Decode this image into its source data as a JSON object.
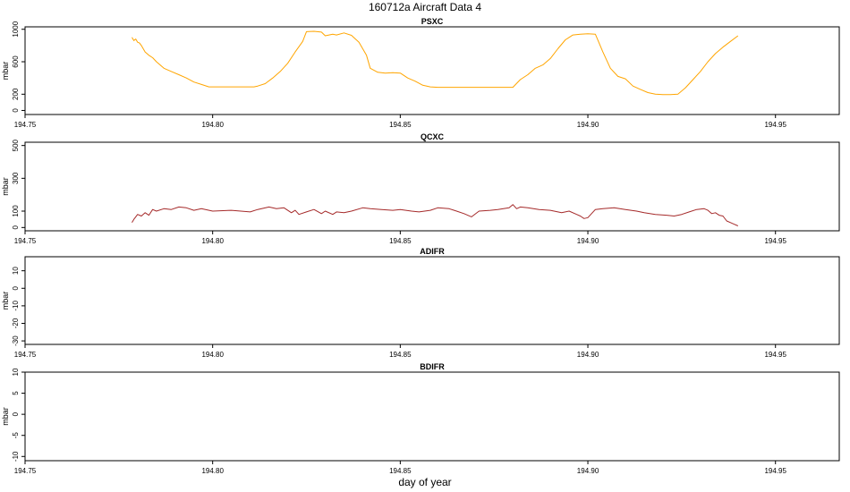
{
  "figure_title": "160712a   Aircraft Data 4",
  "xlabel": "day of year",
  "chart_data": [
    {
      "type": "line",
      "title": "PSXC",
      "ylabel": "mbar",
      "xlim": [
        194.75,
        194.967
      ],
      "ylim": [
        -50,
        1030
      ],
      "xticks": [
        194.75,
        194.8,
        194.85,
        194.9,
        194.95
      ],
      "xtick_labels": [
        "194.75",
        "194.80",
        "194.85",
        "194.90",
        "194.95"
      ],
      "yticks": [
        0,
        200,
        600,
        1000
      ],
      "ytick_labels": [
        "0",
        "200",
        "600",
        "1000"
      ],
      "series": [
        {
          "color": "#FFA500",
          "x": [
            194.7785,
            194.779,
            194.7795,
            194.78,
            194.7805,
            194.781,
            194.782,
            194.783,
            194.784,
            194.785,
            194.787,
            194.789,
            194.791,
            194.793,
            194.795,
            194.797,
            194.799,
            194.805,
            194.811,
            194.812,
            194.814,
            194.816,
            194.818,
            194.82,
            194.822,
            194.824,
            194.825,
            194.827,
            194.829,
            194.83,
            194.832,
            194.833,
            194.835,
            194.837,
            194.839,
            194.841,
            194.842,
            194.844,
            194.846,
            194.848,
            194.85,
            194.852,
            194.854,
            194.856,
            194.858,
            194.86,
            194.865,
            194.87,
            194.875,
            194.88,
            194.882,
            194.884,
            194.886,
            194.888,
            194.89,
            194.892,
            194.894,
            194.896,
            194.898,
            194.9,
            194.902,
            194.904,
            194.906,
            194.908,
            194.91,
            194.912,
            194.914,
            194.916,
            194.918,
            194.92,
            194.922,
            194.924,
            194.926,
            194.928,
            194.93,
            194.932,
            194.934,
            194.936,
            194.938,
            194.94
          ],
          "y": [
            900,
            860,
            880,
            840,
            830,
            800,
            720,
            680,
            650,
            600,
            520,
            480,
            440,
            400,
            350,
            320,
            290,
            290,
            290,
            300,
            330,
            400,
            480,
            580,
            720,
            850,
            970,
            975,
            965,
            920,
            940,
            930,
            955,
            925,
            840,
            680,
            520,
            470,
            460,
            465,
            460,
            400,
            360,
            310,
            290,
            285,
            285,
            285,
            285,
            285,
            380,
            440,
            520,
            560,
            640,
            760,
            870,
            930,
            940,
            945,
            940,
            720,
            520,
            420,
            390,
            300,
            260,
            220,
            200,
            195,
            195,
            200,
            280,
            380,
            480,
            600,
            700,
            780,
            850,
            920
          ]
        }
      ]
    },
    {
      "type": "line",
      "title": "QCXC",
      "ylabel": "mbar",
      "xlim": [
        194.75,
        194.967
      ],
      "ylim": [
        -20,
        520
      ],
      "xticks": [
        194.75,
        194.8,
        194.85,
        194.9,
        194.95
      ],
      "xtick_labels": [
        "194.75",
        "194.80",
        "194.85",
        "194.90",
        "194.95"
      ],
      "yticks": [
        0,
        100,
        300,
        500
      ],
      "ytick_labels": [
        "0",
        "100",
        "300",
        "500"
      ],
      "series": [
        {
          "color": "#A52A2A",
          "x": [
            194.7785,
            194.779,
            194.78,
            194.781,
            194.782,
            194.783,
            194.784,
            194.785,
            194.787,
            194.789,
            194.791,
            194.793,
            194.795,
            194.797,
            194.8,
            194.805,
            194.81,
            194.812,
            194.815,
            194.817,
            194.819,
            194.821,
            194.822,
            194.823,
            194.825,
            194.827,
            194.829,
            194.83,
            194.832,
            194.833,
            194.835,
            194.837,
            194.84,
            194.842,
            194.845,
            194.848,
            194.85,
            194.853,
            194.855,
            194.858,
            194.86,
            194.863,
            194.865,
            194.867,
            194.869,
            194.871,
            194.874,
            194.876,
            194.879,
            194.88,
            194.881,
            194.882,
            194.884,
            194.887,
            194.89,
            194.893,
            194.895,
            194.897,
            194.898,
            194.899,
            194.9,
            194.902,
            194.904,
            194.907,
            194.91,
            194.913,
            194.915,
            194.918,
            194.921,
            194.923,
            194.925,
            194.927,
            194.929,
            194.931,
            194.932,
            194.933,
            194.934,
            194.935,
            194.936,
            194.937,
            194.938,
            194.939,
            194.94
          ],
          "y": [
            30,
            50,
            80,
            70,
            90,
            75,
            110,
            100,
            115,
            110,
            125,
            120,
            105,
            115,
            100,
            105,
            95,
            110,
            125,
            115,
            120,
            90,
            105,
            80,
            95,
            110,
            85,
            100,
            80,
            95,
            90,
            100,
            120,
            115,
            110,
            105,
            110,
            100,
            95,
            105,
            120,
            115,
            100,
            85,
            65,
            100,
            105,
            110,
            120,
            140,
            115,
            125,
            120,
            110,
            105,
            90,
            100,
            80,
            70,
            55,
            60,
            110,
            115,
            120,
            110,
            100,
            90,
            80,
            75,
            70,
            80,
            95,
            110,
            115,
            105,
            85,
            90,
            75,
            70,
            40,
            30,
            20,
            10
          ]
        }
      ]
    },
    {
      "type": "line",
      "title": "ADIFR",
      "ylabel": "mbar",
      "xlim": [
        194.75,
        194.967
      ],
      "ylim": [
        -32,
        18
      ],
      "xticks": [
        194.75,
        194.8,
        194.85,
        194.9,
        194.95
      ],
      "xtick_labels": [
        "194.75",
        "194.80",
        "194.85",
        "194.90",
        "194.95"
      ],
      "yticks": [
        -30,
        -20,
        -10,
        0,
        10
      ],
      "ytick_labels": [
        "-30",
        "-20",
        "-10",
        "0",
        "10"
      ],
      "series": []
    },
    {
      "type": "line",
      "title": "BDIFR",
      "ylabel": "mbar",
      "xlim": [
        194.75,
        194.967
      ],
      "ylim": [
        -11,
        10
      ],
      "xticks": [
        194.75,
        194.8,
        194.85,
        194.9,
        194.95
      ],
      "xtick_labels": [
        "194.75",
        "194.80",
        "194.85",
        "194.90",
        "194.95"
      ],
      "yticks": [
        -10,
        -5,
        0,
        5,
        10
      ],
      "ytick_labels": [
        "-10",
        "-5",
        "0",
        "5",
        "10"
      ],
      "series": []
    }
  ]
}
